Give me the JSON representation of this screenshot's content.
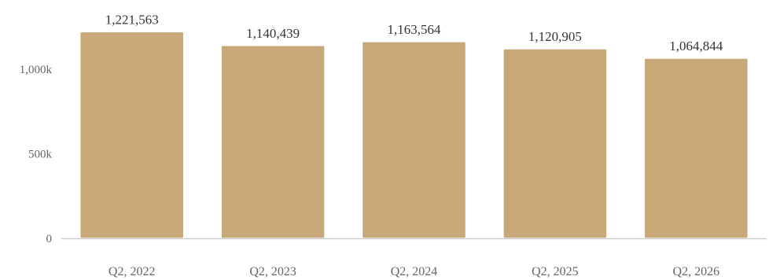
{
  "chart_data": {
    "type": "bar",
    "categories": [
      "Q2, 2022",
      "Q2, 2023",
      "Q2, 2024",
      "Q2, 2025",
      "Q2, 2026"
    ],
    "values": [
      1221563,
      1140439,
      1163564,
      1120905,
      1064844
    ],
    "data_labels": [
      "1,221,563",
      "1,140,439",
      "1,163,564",
      "1,120,905",
      "1,064,844"
    ],
    "title": "",
    "xlabel": "",
    "ylabel": "",
    "ylim": [
      0,
      1250000
    ],
    "yticks": [
      {
        "value": 0,
        "label": "0"
      },
      {
        "value": 500000,
        "label": "500k"
      },
      {
        "value": 1000000,
        "label": "1,000k"
      }
    ],
    "grid": false,
    "legend": "none",
    "colors": {
      "bar": "#c8a878",
      "axis_line": "#cccccc"
    }
  }
}
